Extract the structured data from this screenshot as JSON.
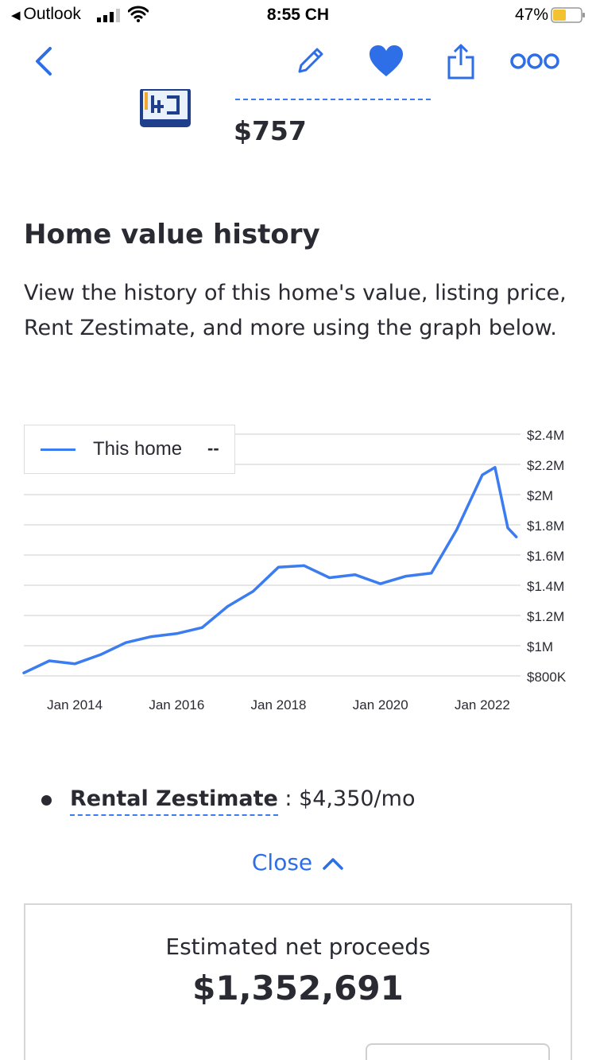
{
  "status_bar": {
    "back_app": "Outlook",
    "time": "8:55 CH",
    "battery_percent": "47%",
    "battery_level": 0.47
  },
  "toolbar": {
    "icons": [
      "back-chevron-icon",
      "edit-pencil-icon",
      "heart-icon",
      "share-icon",
      "more-icon"
    ]
  },
  "listing": {
    "price": "$757"
  },
  "home_value_history": {
    "title": "Home value history",
    "description": "View the history of this home's value, listing price, Rent Zestimate, and more using the graph below."
  },
  "legend": {
    "series_label": "This home",
    "series_value": "--"
  },
  "chart_data": {
    "type": "line",
    "series": [
      {
        "name": "This home",
        "color": "#3b7cf0",
        "x": [
          "2013-01",
          "2013-07",
          "2014-01",
          "2014-07",
          "2015-01",
          "2015-07",
          "2016-01",
          "2016-07",
          "2017-01",
          "2017-07",
          "2018-01",
          "2018-07",
          "2019-01",
          "2019-07",
          "2020-01",
          "2020-07",
          "2021-01",
          "2021-07",
          "2022-01",
          "2022-04",
          "2022-07",
          "2022-09"
        ],
        "values": [
          0.82,
          0.9,
          0.88,
          0.94,
          1.02,
          1.06,
          1.08,
          1.12,
          1.26,
          1.36,
          1.52,
          1.53,
          1.45,
          1.47,
          1.41,
          1.46,
          1.48,
          1.77,
          2.13,
          2.18,
          1.78,
          1.72
        ]
      }
    ],
    "x_ticks": [
      "Jan 2014",
      "Jan 2016",
      "Jan 2018",
      "Jan 2020",
      "Jan 2022"
    ],
    "y_ticks": [
      "$800K",
      "$1M",
      "$1.2M",
      "$1.4M",
      "$1.6M",
      "$1.8M",
      "$2M",
      "$2.2M",
      "$2.4M"
    ],
    "y_tick_values": [
      0.8,
      1.0,
      1.2,
      1.4,
      1.6,
      1.8,
      2.0,
      2.2,
      2.4
    ],
    "ylim": [
      0.8,
      2.4
    ],
    "y_unit": "millions USD",
    "grid": true,
    "legend_position": "top-left"
  },
  "rental": {
    "label": "Rental Zestimate",
    "value": " : $4,350/mo"
  },
  "close_link": {
    "label": "Close"
  },
  "proceeds": {
    "label": "Estimated net proceeds",
    "value": "$1,352,691"
  },
  "colors": {
    "accent": "#3b7cf0",
    "link": "#2e6ee6",
    "text": "#2a2a33"
  }
}
